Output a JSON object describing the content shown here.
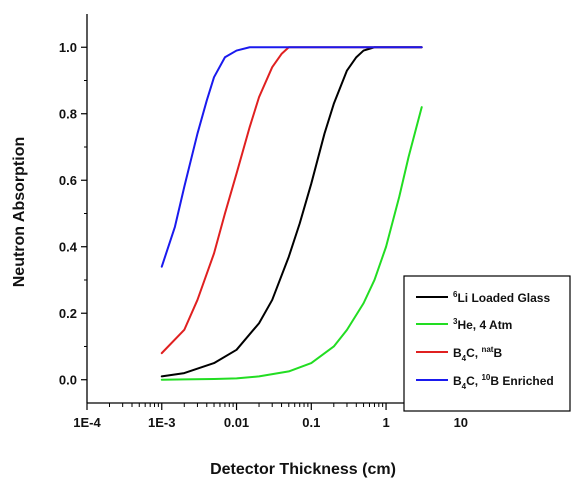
{
  "chart_data": {
    "type": "line",
    "title": "",
    "xlabel": "Detector Thickness (cm)",
    "ylabel": "Neutron Absorption",
    "xscale": "log",
    "xlim": [
      0.0001,
      60
    ],
    "ylim": [
      -0.07,
      1.1
    ],
    "grid": false,
    "legend_position": "bottom-right",
    "x_ticks": [
      {
        "value": 0.0001,
        "label": "1E-4"
      },
      {
        "value": 0.001,
        "label": "1E-3"
      },
      {
        "value": 0.01,
        "label": "0.01"
      },
      {
        "value": 0.1,
        "label": "0.1"
      },
      {
        "value": 1,
        "label": "1"
      },
      {
        "value": 10,
        "label": "10"
      }
    ],
    "y_ticks": [
      {
        "value": 0.0,
        "label": "0.0"
      },
      {
        "value": 0.2,
        "label": "0.2"
      },
      {
        "value": 0.4,
        "label": "0.4"
      },
      {
        "value": 0.6,
        "label": "0.6"
      },
      {
        "value": 0.8,
        "label": "0.8"
      },
      {
        "value": 1.0,
        "label": "1.0"
      }
    ],
    "series": [
      {
        "legend": {
          "sup": "6",
          "text": "Li Loaded Glass"
        },
        "color": "#000000",
        "x": [
          0.001,
          0.002,
          0.005,
          0.01,
          0.02,
          0.03,
          0.05,
          0.07,
          0.1,
          0.15,
          0.2,
          0.3,
          0.4,
          0.5,
          0.7,
          1,
          3
        ],
        "y": [
          0.01,
          0.02,
          0.05,
          0.09,
          0.17,
          0.24,
          0.37,
          0.47,
          0.59,
          0.74,
          0.83,
          0.93,
          0.97,
          0.99,
          1.0,
          1.0,
          1.0
        ]
      },
      {
        "legend": {
          "sup": "3",
          "text": "He, 4 Atm"
        },
        "color": "#22dd22",
        "x": [
          0.001,
          0.002,
          0.005,
          0.01,
          0.02,
          0.05,
          0.1,
          0.2,
          0.3,
          0.5,
          0.7,
          1,
          1.5,
          2,
          3
        ],
        "y": [
          0.0,
          0.001,
          0.002,
          0.004,
          0.01,
          0.025,
          0.05,
          0.1,
          0.15,
          0.23,
          0.3,
          0.4,
          0.55,
          0.67,
          0.82
        ]
      },
      {
        "legend": {
          "text": "B",
          "sub": "4",
          "text2": "C, ",
          "sup2": "nat",
          "text3": "B"
        },
        "color": "#e02020",
        "x": [
          0.001,
          0.002,
          0.003,
          0.005,
          0.007,
          0.01,
          0.015,
          0.02,
          0.03,
          0.04,
          0.05,
          0.07,
          0.1,
          0.2,
          3
        ],
        "y": [
          0.08,
          0.15,
          0.24,
          0.38,
          0.5,
          0.62,
          0.76,
          0.85,
          0.94,
          0.98,
          1.0,
          1.0,
          1.0,
          1.0,
          1.0
        ]
      },
      {
        "legend": {
          "text": "B",
          "sub": "4",
          "text2": "C, ",
          "sup2": "10",
          "text3": "B Enriched"
        },
        "color": "#1a1aee",
        "x": [
          0.001,
          0.0015,
          0.002,
          0.003,
          0.004,
          0.005,
          0.007,
          0.01,
          0.015,
          0.02,
          0.05,
          0.1,
          0.3,
          1,
          3
        ],
        "y": [
          0.34,
          0.46,
          0.58,
          0.74,
          0.84,
          0.91,
          0.97,
          0.99,
          1.0,
          1.0,
          1.0,
          1.0,
          1.0,
          1.0,
          1.0
        ]
      }
    ]
  }
}
